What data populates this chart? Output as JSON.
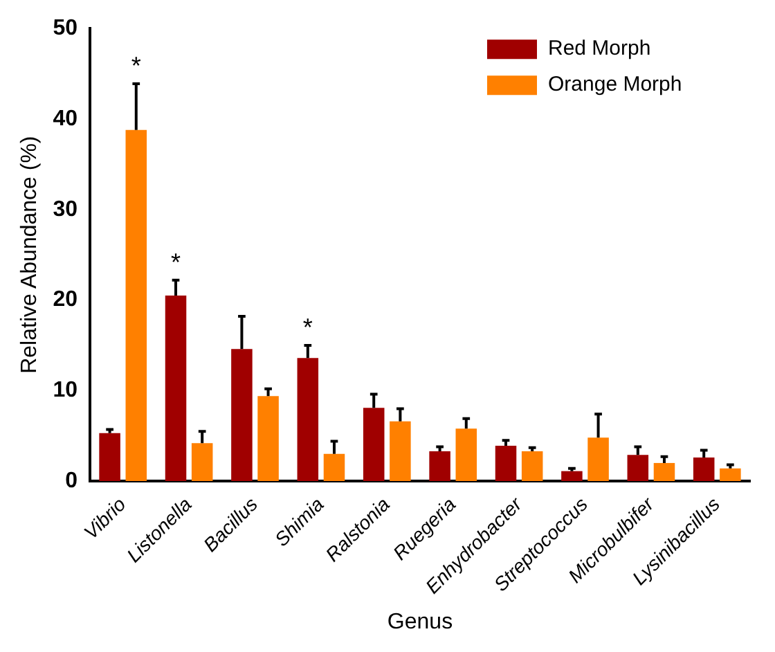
{
  "chart_data": {
    "type": "bar",
    "xlabel": "Genus",
    "ylabel": "Relative Abundance (%)",
    "categories": [
      "Vibrio",
      "Listonella",
      "Bacillus",
      "Shimia",
      "Ralstonia",
      "Ruegeria",
      "Enhydrobacter",
      "Streptococcus",
      "Microbulbifer",
      "Lysinibacillus"
    ],
    "series": [
      {
        "name": "Red Morph",
        "color": "#a00000",
        "values": [
          5.3,
          20.5,
          14.6,
          13.6,
          8.1,
          3.3,
          3.9,
          1.1,
          2.9,
          2.6
        ],
        "value_labels": [
          null,
          "*",
          null,
          "*",
          null,
          null,
          null,
          null,
          null,
          null
        ],
        "errors": [
          [
            5.3,
            5.7
          ],
          [
            20.5,
            22.2
          ],
          [
            14.6,
            18.2
          ],
          [
            13.6,
            15.0
          ],
          [
            8.1,
            9.6
          ],
          [
            3.3,
            3.8
          ],
          [
            3.9,
            4.5
          ],
          [
            1.1,
            1.4
          ],
          [
            2.9,
            3.8
          ],
          [
            2.6,
            3.4
          ]
        ]
      },
      {
        "name": "Orange Morph",
        "color": "#ff8000",
        "values": [
          38.8,
          4.2,
          9.4,
          3.0,
          6.6,
          5.8,
          3.3,
          4.8,
          2.0,
          1.4
        ],
        "value_labels": [
          "*",
          null,
          null,
          null,
          null,
          null,
          null,
          null,
          null,
          null
        ],
        "errors": [
          [
            38.8,
            43.9
          ],
          [
            4.2,
            5.5
          ],
          [
            9.4,
            10.2
          ],
          [
            3.0,
            4.4
          ],
          [
            6.6,
            8.0
          ],
          [
            5.8,
            6.9
          ],
          [
            3.3,
            3.7
          ],
          [
            4.8,
            7.4
          ],
          [
            2.0,
            2.7
          ],
          [
            1.4,
            1.8
          ]
        ]
      }
    ],
    "ylim": [
      0,
      50
    ],
    "yticks": [
      0,
      10,
      20,
      30,
      40,
      50
    ],
    "grid": false,
    "legend": "top right"
  }
}
